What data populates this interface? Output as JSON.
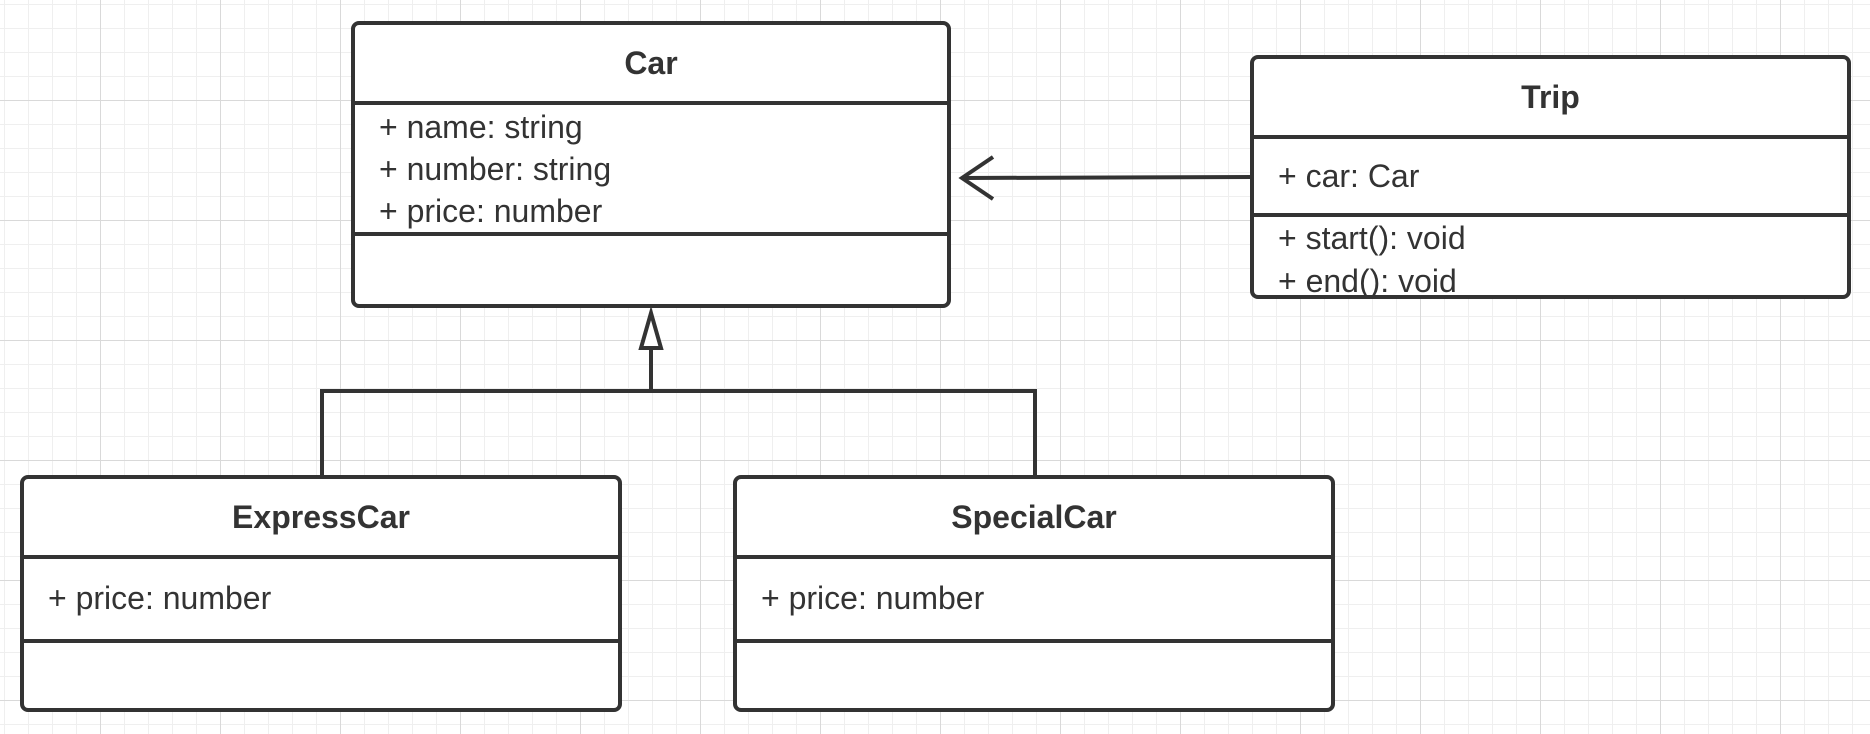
{
  "diagram": {
    "classes": {
      "car": {
        "name": "Car",
        "attributes": [
          "+ name: string",
          "+ number: string",
          "+ price: number"
        ],
        "methods": []
      },
      "trip": {
        "name": "Trip",
        "attributes": [
          "+ car: Car"
        ],
        "methods": [
          "+ start(): void",
          "+ end(): void"
        ]
      },
      "express_car": {
        "name": "ExpressCar",
        "attributes": [
          "+ price: number"
        ],
        "methods": []
      },
      "special_car": {
        "name": "SpecialCar",
        "attributes": [
          "+ price: number"
        ],
        "methods": []
      }
    },
    "relations": [
      {
        "type": "association",
        "from": "Trip",
        "to": "Car"
      },
      {
        "type": "generalization",
        "from": "ExpressCar",
        "to": "Car"
      },
      {
        "type": "generalization",
        "from": "SpecialCar",
        "to": "Car"
      }
    ],
    "colors": {
      "stroke": "#333333",
      "text": "#333333",
      "grid_major": "#d9d9d9",
      "grid_minor": "#efefef",
      "background": "#ffffff"
    }
  }
}
